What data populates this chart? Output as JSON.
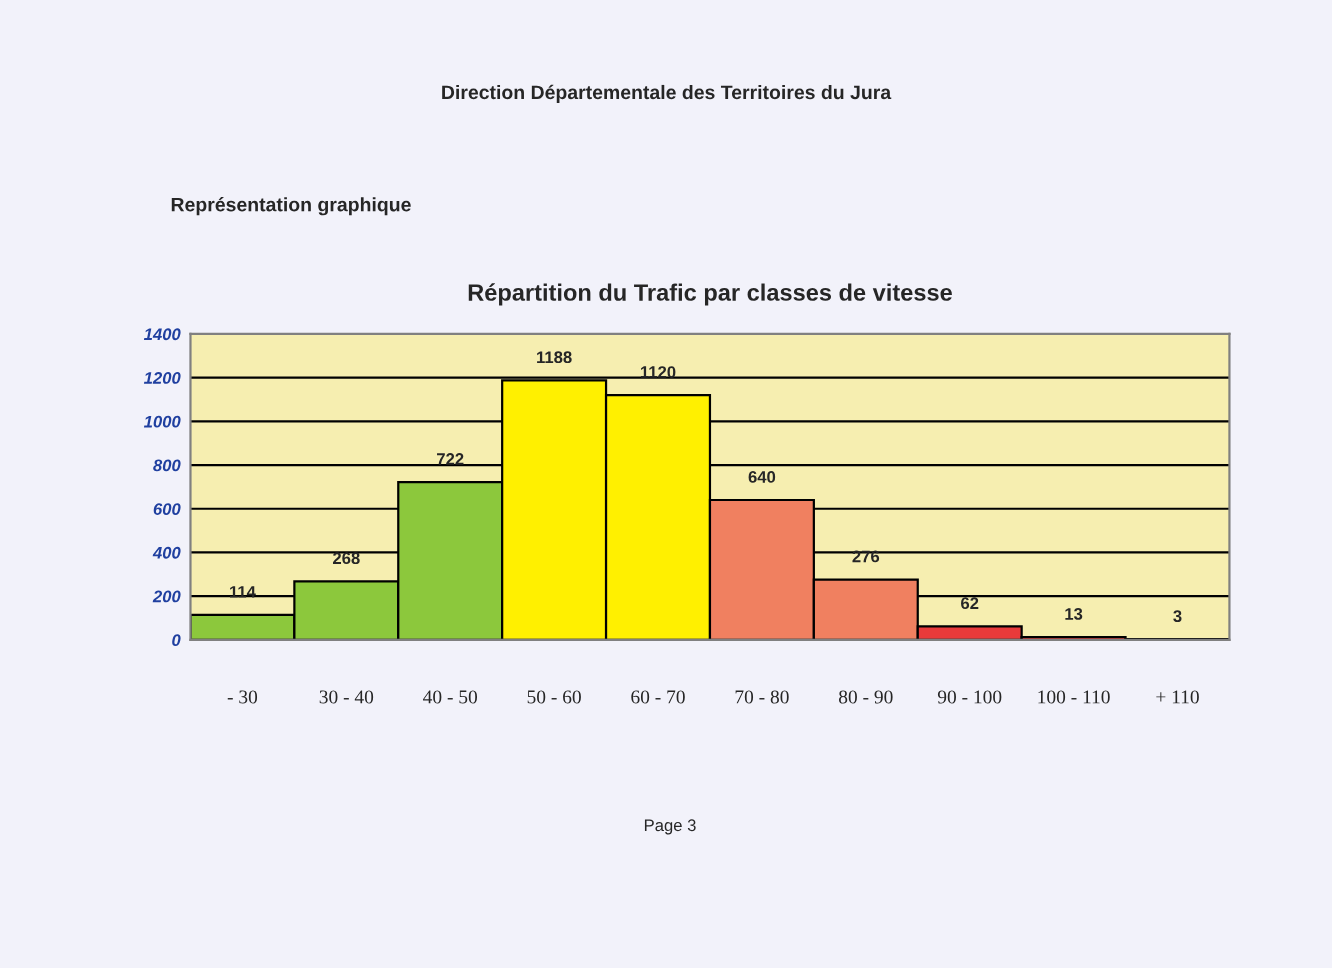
{
  "chart_data": {
    "type": "bar",
    "title": "Répartition du Trafic par classes de vitesse",
    "categories": [
      "- 30",
      "30 - 40",
      "40 - 50",
      "50 - 60",
      "60 - 70",
      "70 - 80",
      "80 - 90",
      "90 - 100",
      "100 - 110",
      "+ 110"
    ],
    "values": [
      114,
      268,
      722,
      1188,
      1120,
      640,
      276,
      62,
      13,
      3
    ],
    "colors": [
      "#8cc83c",
      "#8cc83c",
      "#8cc83c",
      "#fff000",
      "#fff000",
      "#f08060",
      "#f08060",
      "#e83a3a",
      "#e83a3a",
      "#e83a3a"
    ],
    "ylim": [
      0,
      1400
    ],
    "yticks": [
      0,
      200,
      400,
      600,
      800,
      1000,
      1200,
      1400
    ],
    "grid": "y",
    "data_labels": true,
    "annotations": [
      "Direction Départementale des Territoires du Jura",
      "Représentation graphique",
      "Page 3"
    ]
  }
}
